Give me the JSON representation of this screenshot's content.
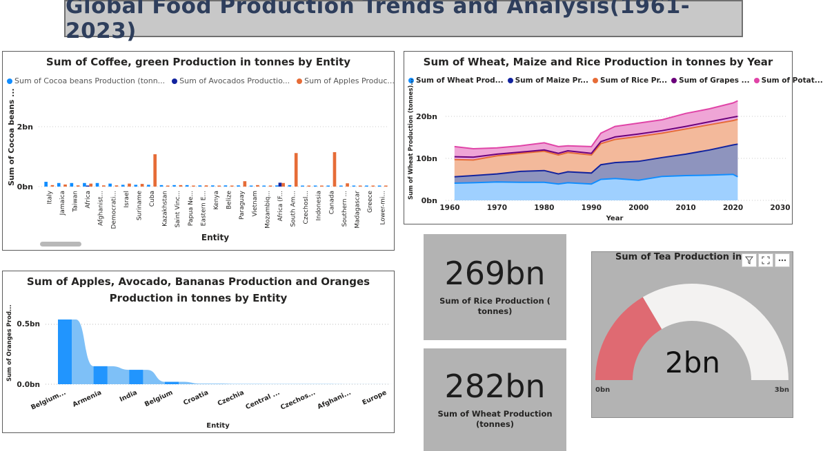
{
  "dashboard_title": "Global Food Production Trends and Analysis(1961-2023)",
  "coffee_panel": {
    "title": "Sum of Coffee, green Production in tonnes by Entity",
    "legend": [
      {
        "label": "Sum of Cocoa beans Production (tonn...",
        "color": "#118DFF"
      },
      {
        "label": "Sum of Avocados Productio...",
        "color": "#12239E"
      },
      {
        "label": "Sum of Apples Produc...",
        "color": "#E66C37"
      }
    ],
    "ylabel": "Sum of Cocoa beans ...",
    "xlabel": "Entity",
    "y_ticks": [
      "2bn",
      "0bn"
    ]
  },
  "wheat_panel": {
    "title": "Sum of Wheat, Maize and Rice Production in tonnes by Year",
    "legend": [
      {
        "label": "Sum of Wheat Prod...",
        "color": "#118DFF"
      },
      {
        "label": "Sum of Maize Pr...",
        "color": "#12239E"
      },
      {
        "label": "Sum of Rice  Pr...",
        "color": "#E66C37"
      },
      {
        "label": "Sum of Grapes ...",
        "color": "#6B007B"
      },
      {
        "label": "Sum of Potat...",
        "color": "#E044A7"
      }
    ],
    "ylabel": "Sum of Wheat Production (tonnes)...",
    "xlabel": "Year",
    "y_ticks": [
      "20bn",
      "10bn",
      "0bn"
    ],
    "x_ticks": [
      "1960",
      "1970",
      "1980",
      "1990",
      "2000",
      "2010",
      "2020",
      "2030"
    ]
  },
  "fruit_panel": {
    "title_line1": "Sum of Apples, Avocado, Bananas Production and Oranges",
    "title_line2": "Production in tonnes by Entity",
    "ylabel": "Sum of Oranges Prod...",
    "xlabel": "Entity",
    "y_ticks": [
      "0.5bn",
      "0.0bn"
    ]
  },
  "rice_card": {
    "value": "269bn",
    "caption_line1": "Sum of Rice  Production (",
    "caption_line2": "tonnes)"
  },
  "wheat_card": {
    "value": "282bn",
    "caption_line1": "Sum of Wheat Production",
    "caption_line2": "(tonnes)"
  },
  "tea_gauge": {
    "title": "Sum of Tea Production in",
    "value_label": "2bn",
    "min_label": "0bn",
    "max_label": "3bn",
    "fill_fraction": 0.33,
    "fill_color": "#DF6A72",
    "track_color": "#F3F2F1"
  },
  "chart_data": [
    {
      "type": "bar",
      "title": "Sum of Coffee, green Production in tonnes by Entity",
      "xlabel": "Entity",
      "ylabel": "Sum of Cocoa beans ...",
      "ylim": [
        0,
        2.8
      ],
      "unit": "bn",
      "categories": [
        "Italy",
        "Jamaica",
        "Taiwan",
        "Africa",
        "Afghanist...",
        "Democrati...",
        "Israel",
        "Suriname",
        "Cuba",
        "Kazakhstan",
        "Saint Vinc...",
        "Papua Ne...",
        "Eastern E...",
        "Kenya",
        "Belize",
        "Paraguay",
        "Vietnam",
        "Mozambiq...",
        "Africa (F...",
        "South Am...",
        "Czechosl...",
        "Indonesia",
        "Canada",
        "Southern ...",
        "Madagascar",
        "Greece",
        "Lower-mi..."
      ],
      "series": [
        {
          "name": "Sum of Cocoa beans Production (tonn...",
          "values": [
            0.16,
            0.12,
            0.12,
            0.12,
            0.12,
            0.1,
            0.06,
            0.06,
            0.06,
            0.05,
            0.05,
            0.05,
            0.04,
            0.04,
            0.04,
            0.04,
            0.03,
            0.03,
            0.04,
            0.05,
            0.03,
            0.03,
            0.03,
            0.02,
            0.02,
            0.02,
            0.02
          ]
        },
        {
          "name": "Sum of Avocados Productio...",
          "values": [
            0,
            0,
            0,
            0.01,
            0,
            0,
            0,
            0,
            0,
            0,
            0,
            0,
            0,
            0,
            0,
            0,
            0,
            0,
            0.13,
            0,
            0,
            0,
            0,
            0,
            0,
            0,
            0
          ]
        },
        {
          "name": "Sum of Apples Produc...",
          "values": [
            0.05,
            0.07,
            0.04,
            0.1,
            0.04,
            0.04,
            0.1,
            0.09,
            1.08,
            0.02,
            0.05,
            0.02,
            0.04,
            0.03,
            0.02,
            0.18,
            0.05,
            0.02,
            0.12,
            1.12,
            0.02,
            0.02,
            1.15,
            0.11,
            0.02,
            0.02,
            0.02
          ]
        }
      ]
    },
    {
      "type": "area",
      "title": "Sum of Wheat, Maize and Rice Production in tonnes by Year",
      "xlabel": "Year",
      "ylabel": "Sum of Wheat Production (tonnes)...",
      "xlim": [
        1960,
        2030
      ],
      "ylim": [
        0,
        25
      ],
      "unit": "bn",
      "x": [
        1961,
        1965,
        1970,
        1975,
        1980,
        1983,
        1985,
        1990,
        1992,
        1995,
        2000,
        2005,
        2010,
        2015,
        2020,
        2021
      ],
      "series": [
        {
          "name": "Sum of Wheat Prod...",
          "values": [
            4.1,
            4.2,
            4.4,
            4.3,
            4.3,
            3.9,
            4.2,
            3.9,
            5.0,
            5.2,
            4.8,
            5.7,
            5.9,
            6.0,
            6.2,
            5.6
          ]
        },
        {
          "name": "Sum of Maize Pr...",
          "values": [
            5.6,
            5.9,
            6.3,
            6.9,
            7.1,
            6.3,
            6.8,
            6.5,
            8.5,
            9.0,
            9.3,
            10.2,
            11.0,
            12.0,
            13.2,
            13.4
          ]
        },
        {
          "name": "Sum of Rice  Pr...",
          "values": [
            9.7,
            9.6,
            10.6,
            11.2,
            11.7,
            10.8,
            11.4,
            10.8,
            13.5,
            14.5,
            15.2,
            16.0,
            17.0,
            18.0,
            19.0,
            19.3
          ]
        },
        {
          "name": "Sum of Grapes ...",
          "values": [
            10.4,
            10.3,
            11.0,
            11.5,
            12.0,
            11.2,
            11.8,
            11.2,
            14.0,
            15.1,
            15.8,
            16.6,
            17.6,
            18.7,
            19.8,
            20.0
          ]
        },
        {
          "name": "Sum of Potat...",
          "values": [
            12.8,
            12.3,
            12.5,
            13.0,
            13.7,
            12.8,
            13.0,
            12.8,
            16.0,
            17.6,
            18.4,
            19.2,
            20.7,
            21.8,
            23.2,
            23.7
          ]
        }
      ]
    },
    {
      "type": "area",
      "title": "Sum of Apples, Avocado, Bananas Production and Oranges Production in tonnes by Entity",
      "xlabel": "Entity",
      "ylabel": "Sum of Oranges Prod...",
      "ylim": [
        0,
        0.65
      ],
      "unit": "bn",
      "categories": [
        "Belgium...",
        "Armenia",
        "India",
        "Belgium",
        "Croatia",
        "Czechia",
        "Central ...",
        "Czechos...",
        "Afghani...",
        "Europe"
      ],
      "series": [
        {
          "name": "Sum of Oranges Prod...",
          "values": [
            0.54,
            0.15,
            0.12,
            0.02,
            0.005,
            0.003,
            0.002,
            0.002,
            0.001,
            0.001
          ]
        }
      ]
    }
  ]
}
